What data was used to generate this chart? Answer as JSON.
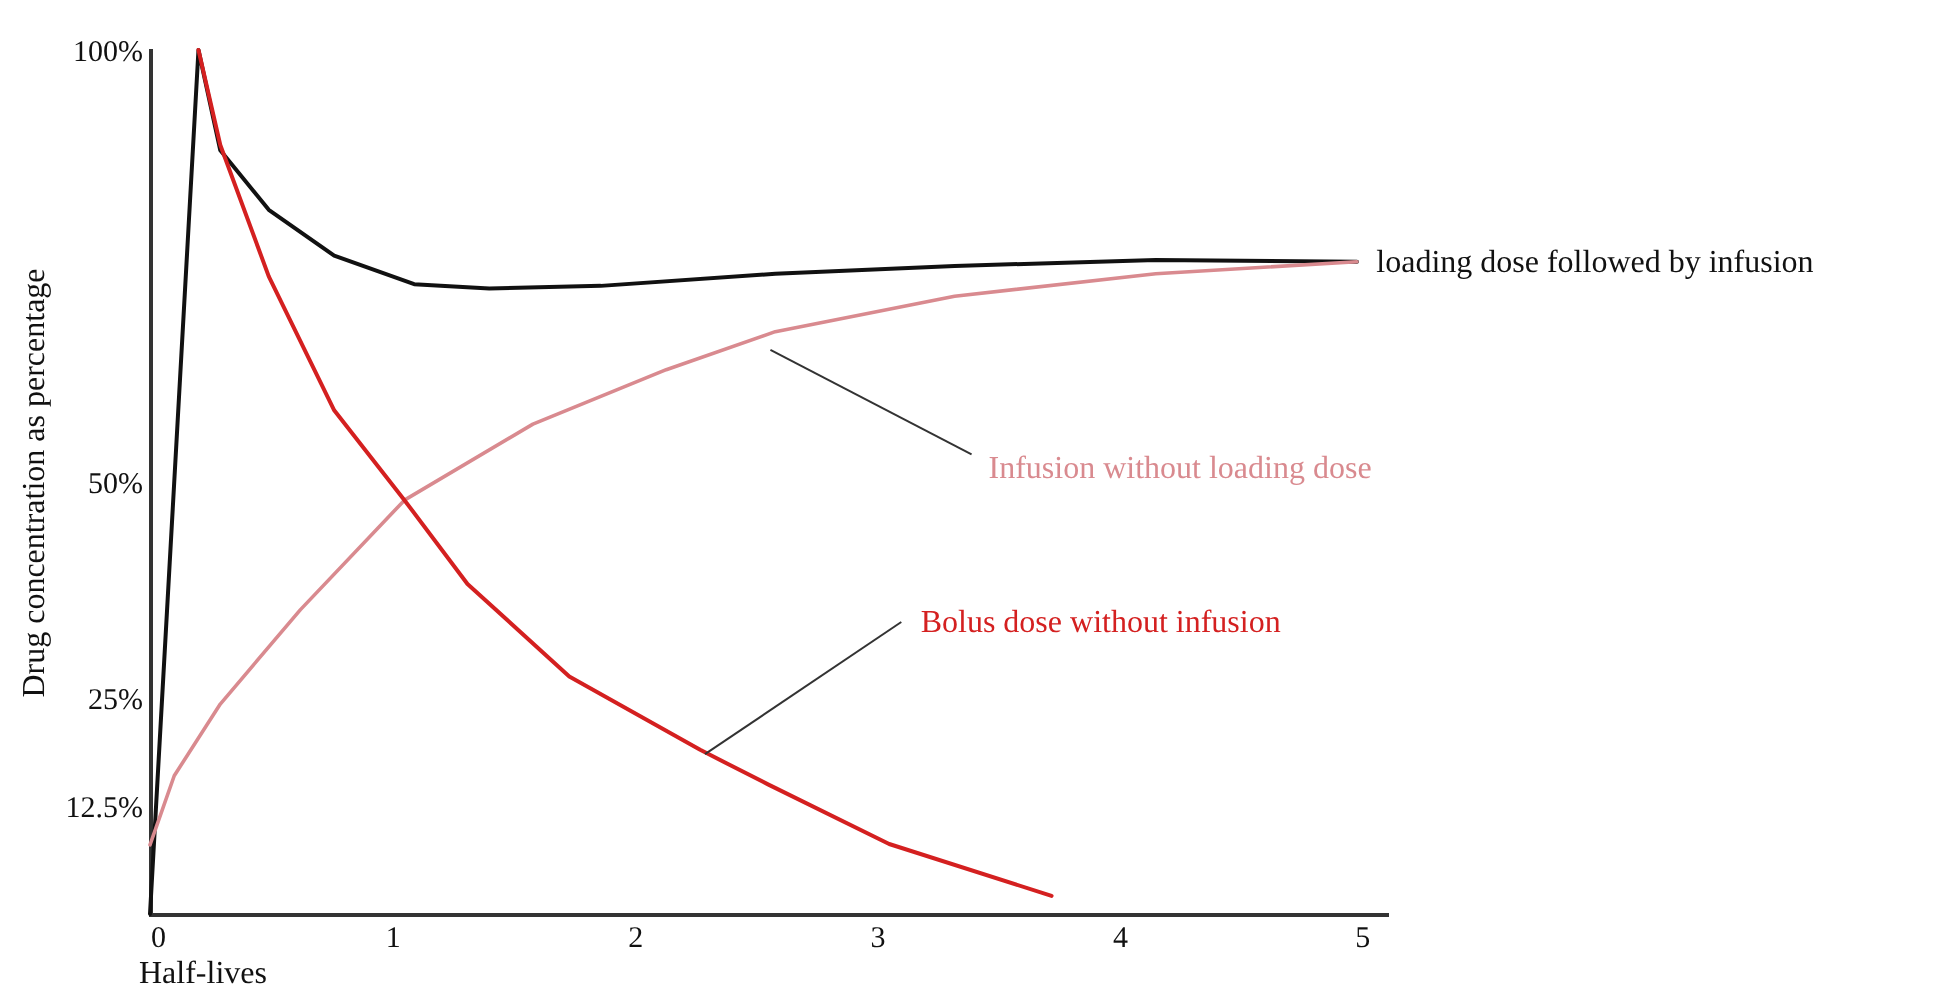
{
  "chart_data": {
    "type": "line",
    "xlabel": "Half-lives",
    "ylabel": "Drug concentration as percentage",
    "xlim": [
      0,
      5.1
    ],
    "xticks": [
      0,
      1,
      2,
      3,
      4,
      5
    ],
    "ylim": [
      0,
      100
    ],
    "yticks": [
      {
        "value": 12.5,
        "label": "12.5%"
      },
      {
        "value": 25,
        "label": "25%"
      },
      {
        "value": 50,
        "label": "50%"
      },
      {
        "value": 100,
        "label": "100%"
      }
    ],
    "grid": false,
    "legend": false,
    "series": [
      {
        "name": "loading dose followed by infusion",
        "color": "#111111",
        "x": [
          0,
          0.2,
          0.29,
          0.49,
          0.76,
          1.09,
          1.4,
          1.86,
          2.58,
          3.32,
          4.15,
          4.98
        ],
        "values": [
          0,
          100,
          88.4,
          81.5,
          76.2,
          72.9,
          72.4,
          72.7,
          74.1,
          75,
          75.7,
          75.5
        ]
      },
      {
        "name": "Infusion without loading dose",
        "color": "#d98a8f",
        "x": [
          0,
          0.1,
          0.29,
          0.62,
          1.05,
          1.58,
          2.13,
          2.58,
          3.32,
          4.15,
          4.98
        ],
        "values": [
          8,
          16,
          24.3,
          35.2,
          47.9,
          56.7,
          63,
          67.4,
          71.5,
          74.1,
          75.5
        ]
      },
      {
        "name": "Bolus dose without infusion",
        "color": "#d42020",
        "x": [
          0.2,
          0.29,
          0.49,
          0.76,
          1.05,
          1.31,
          1.73,
          2.27,
          2.55,
          3.05,
          3.72
        ],
        "values": [
          100,
          89,
          73.8,
          58.3,
          47.9,
          38.2,
          27.5,
          19,
          15,
          8.1,
          2.1
        ]
      }
    ]
  }
}
